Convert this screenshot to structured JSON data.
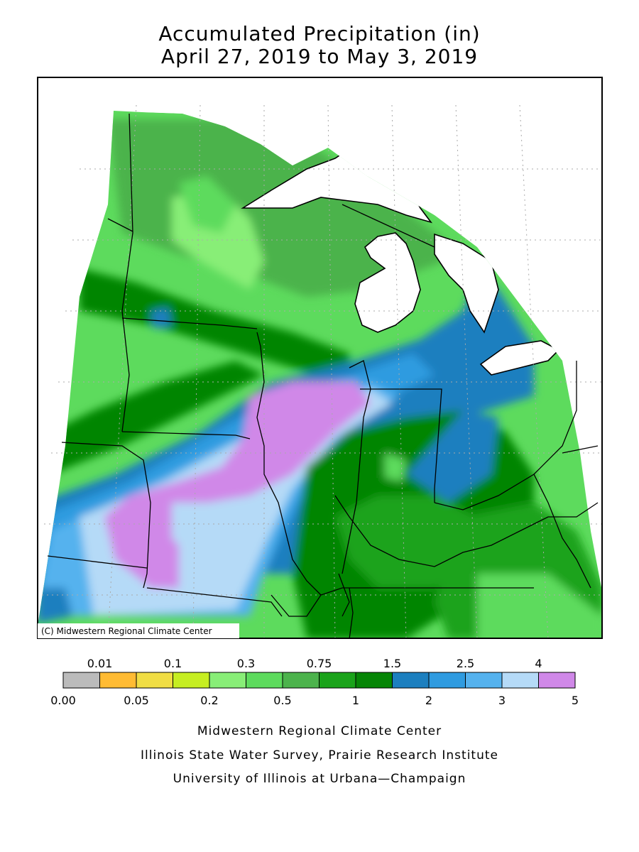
{
  "title": {
    "line1": "Accumulated Precipitation (in)",
    "line2": "April 27, 2019 to May 3, 2019"
  },
  "map": {
    "copyright": "(C) Midwestern Regional Climate Center"
  },
  "legend": {
    "top_labels": [
      "0.01",
      "0.1",
      "0.3",
      "0.75",
      "1.5",
      "2.5",
      "4"
    ],
    "bottom_labels": [
      "0.00",
      "0.05",
      "0.2",
      "0.5",
      "1",
      "2",
      "3",
      "5"
    ],
    "colors": [
      "#bbbbbb",
      "#ffbb33",
      "#f0dd44",
      "#c6ee22",
      "#88ee77",
      "#5ddb5d",
      "#4cb34c",
      "#1aa31a",
      "#068506",
      "#1c7fbf",
      "#2f9be0",
      "#55b2ee",
      "#b5daf7",
      "#d088e8"
    ]
  },
  "credits": {
    "line1": "Midwestern Regional Climate Center",
    "line2": "Illinois State Water Survey, Prairie Research Institute",
    "line3": "University of Illinois at Urbana—Champaign"
  }
}
